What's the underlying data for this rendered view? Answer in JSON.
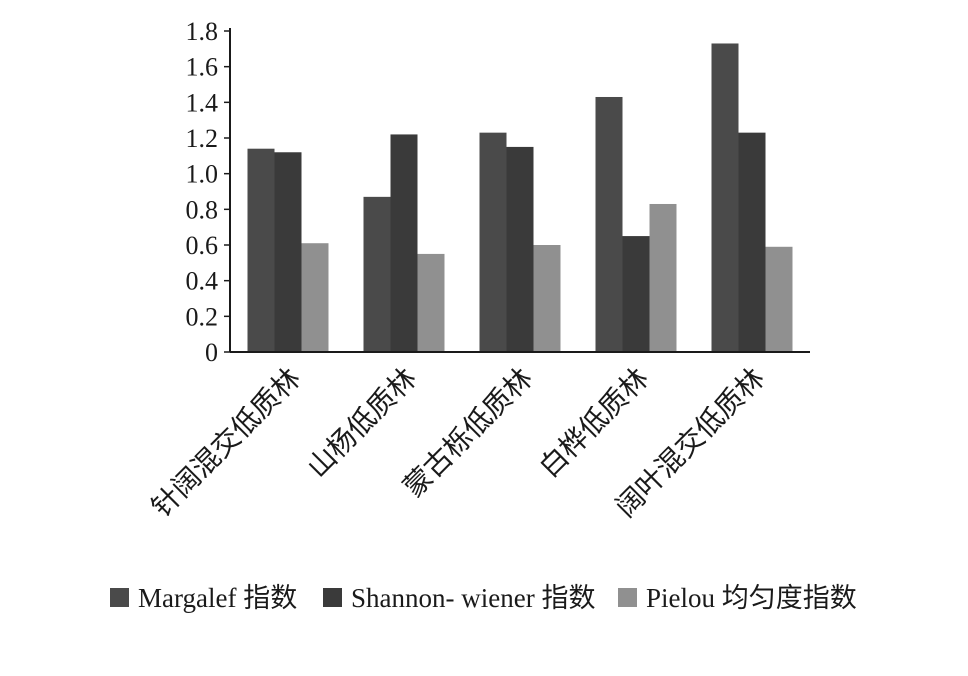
{
  "chart_data": {
    "type": "bar",
    "title": "",
    "xlabel": "",
    "ylabel": "",
    "ylim": [
      0,
      1.8
    ],
    "yticks": [
      0,
      0.2,
      0.4,
      0.6,
      0.8,
      1.0,
      1.2,
      1.4,
      1.6,
      1.8
    ],
    "ytick_labels": [
      "0",
      "0.2",
      "0.4",
      "0.6",
      "0.8",
      "1.0",
      "1.2",
      "1.4",
      "1.6",
      "1.8"
    ],
    "categories": [
      "针阔混交低质林",
      "山杨低质林",
      "蒙古栎低质林",
      "白桦低质林",
      "阔叶混交低质林"
    ],
    "series": [
      {
        "name": "Margalef 指数",
        "color": "#4a4a4a",
        "values": [
          1.14,
          0.87,
          1.23,
          1.43,
          1.73
        ]
      },
      {
        "name": "Shannon- wiener 指数",
        "color": "#3a3a3a",
        "values": [
          1.12,
          1.22,
          1.15,
          0.65,
          1.23
        ]
      },
      {
        "name": "Pielou 均匀度指数",
        "color": "#909090",
        "values": [
          0.61,
          0.55,
          0.6,
          0.83,
          0.59
        ]
      }
    ],
    "grid": false,
    "legend_position": "bottom"
  }
}
